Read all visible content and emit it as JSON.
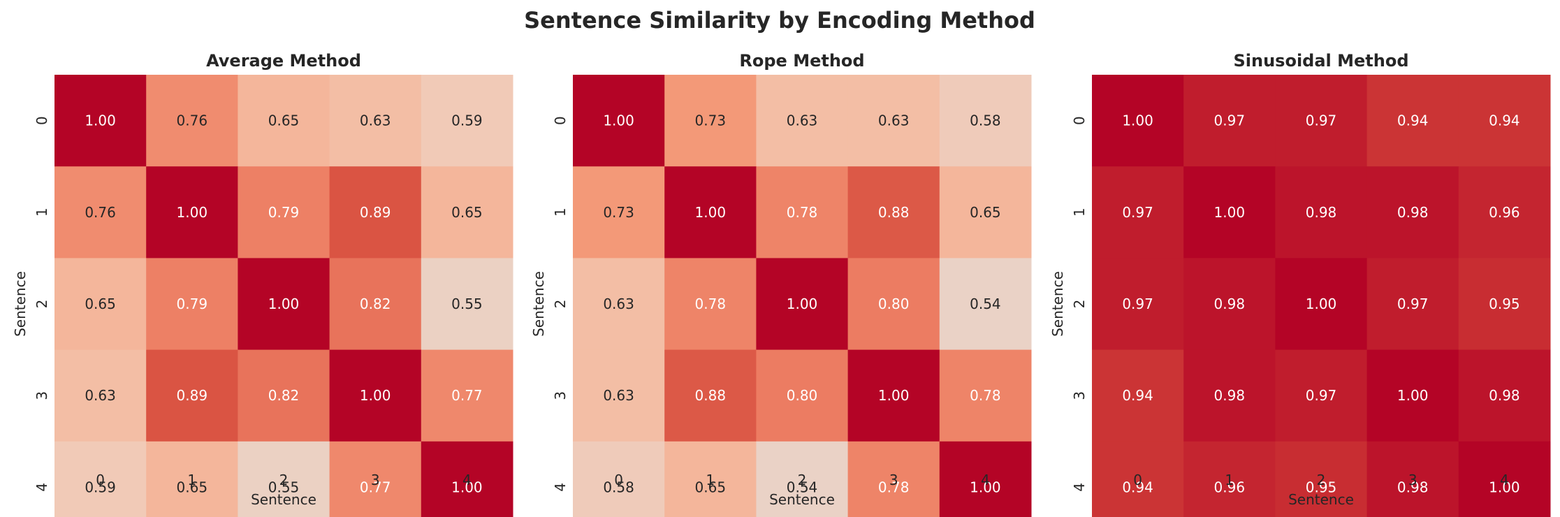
{
  "figure": {
    "title": "Sentence Similarity by Encoding Method"
  },
  "colormap": {
    "name": "coolwarm",
    "vmin": 0,
    "vmax": 1,
    "low_color": "#e4d9d2",
    "high_color": "#b40426",
    "text_light": "#ffffff",
    "text_dark": "#262626"
  },
  "chart_data": [
    {
      "type": "heatmap",
      "title": "Average Method",
      "xlabel": "Sentence",
      "ylabel": "Sentence",
      "x_ticks": [
        "0",
        "1",
        "2",
        "3",
        "4"
      ],
      "y_ticks": [
        "0",
        "1",
        "2",
        "3",
        "4"
      ],
      "values": [
        [
          1.0,
          0.76,
          0.65,
          0.63,
          0.59
        ],
        [
          0.76,
          1.0,
          0.79,
          0.89,
          0.65
        ],
        [
          0.65,
          0.79,
          1.0,
          0.82,
          0.55
        ],
        [
          0.63,
          0.89,
          0.82,
          1.0,
          0.77
        ],
        [
          0.59,
          0.65,
          0.55,
          0.77,
          1.0
        ]
      ],
      "colorbar": false
    },
    {
      "type": "heatmap",
      "title": "Rope Method",
      "xlabel": "Sentence",
      "ylabel": "Sentence",
      "x_ticks": [
        "0",
        "1",
        "2",
        "3",
        "4"
      ],
      "y_ticks": [
        "0",
        "1",
        "2",
        "3",
        "4"
      ],
      "values": [
        [
          1.0,
          0.73,
          0.63,
          0.63,
          0.58
        ],
        [
          0.73,
          1.0,
          0.78,
          0.88,
          0.65
        ],
        [
          0.63,
          0.78,
          1.0,
          0.8,
          0.54
        ],
        [
          0.63,
          0.88,
          0.8,
          1.0,
          0.78
        ],
        [
          0.58,
          0.65,
          0.54,
          0.78,
          1.0
        ]
      ],
      "colorbar": false
    },
    {
      "type": "heatmap",
      "title": "Sinusoidal Method",
      "xlabel": "Sentence",
      "ylabel": "Sentence",
      "x_ticks": [
        "0",
        "1",
        "2",
        "3",
        "4"
      ],
      "y_ticks": [
        "0",
        "1",
        "2",
        "3",
        "4"
      ],
      "values": [
        [
          1.0,
          0.97,
          0.97,
          0.94,
          0.94
        ],
        [
          0.97,
          1.0,
          0.98,
          0.98,
          0.96
        ],
        [
          0.97,
          0.98,
          1.0,
          0.97,
          0.95
        ],
        [
          0.94,
          0.98,
          0.97,
          1.0,
          0.98
        ],
        [
          0.94,
          0.96,
          0.95,
          0.98,
          1.0
        ]
      ],
      "colorbar": false
    }
  ]
}
